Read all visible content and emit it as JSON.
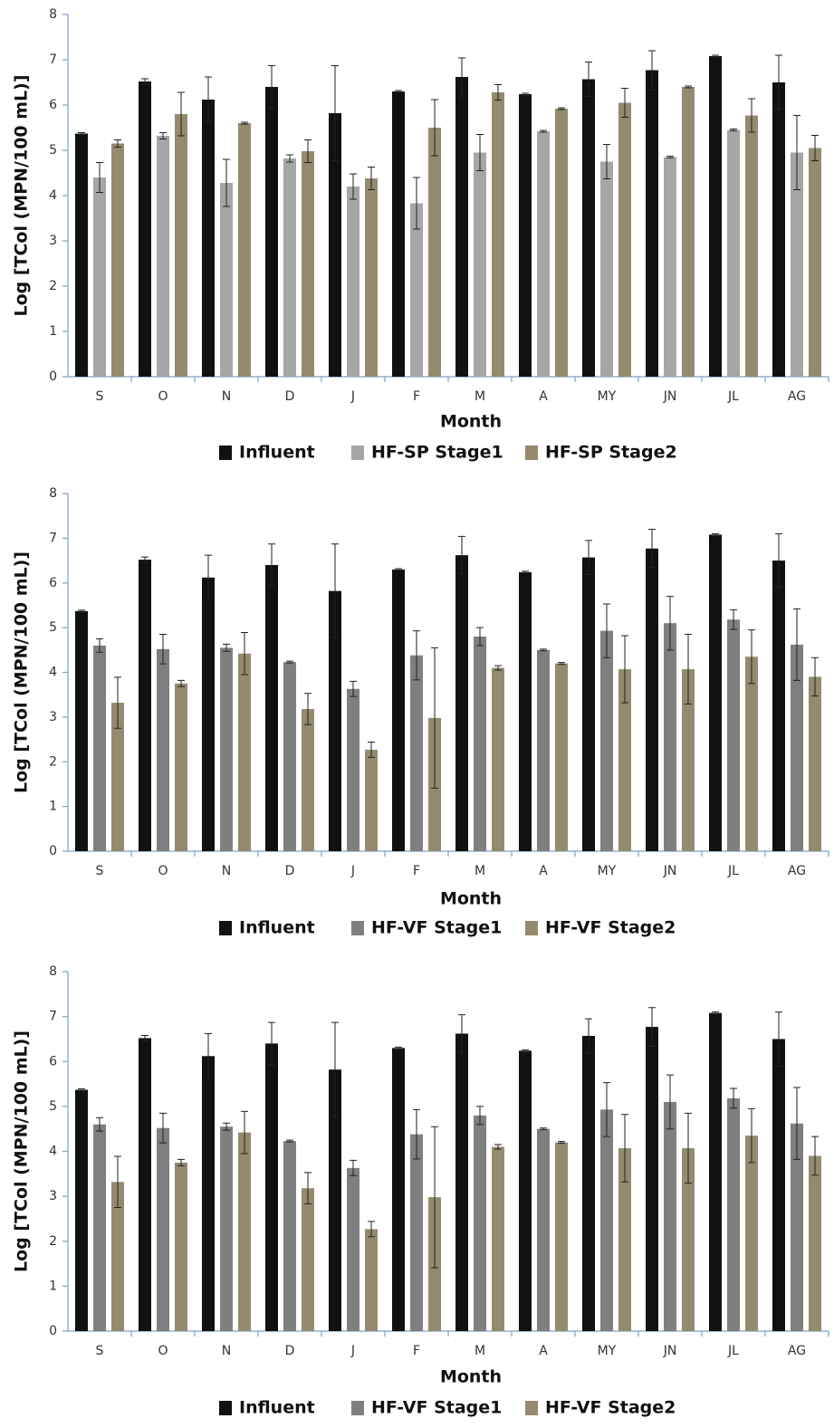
{
  "chart_data": [
    {
      "type": "bar",
      "y_label": "Log [TCol (MPN/100 mL)]",
      "x_label": "Month",
      "categories": [
        "S",
        "O",
        "N",
        "D",
        "J",
        "F",
        "M",
        "A",
        "MY",
        "JN",
        "JL",
        "AG"
      ],
      "ylim": [
        0,
        8
      ],
      "yticks": [
        0,
        1,
        2,
        3,
        4,
        5,
        6,
        7,
        8
      ],
      "grid": false,
      "series": [
        {
          "name": "Influent",
          "color": "#111111",
          "values": [
            5.37,
            6.52,
            6.12,
            6.4,
            5.82,
            6.3,
            6.62,
            6.24,
            6.57,
            6.77,
            7.08,
            6.5
          ],
          "errors": [
            0.02,
            0.06,
            0.5,
            0.47,
            1.05,
            0.02,
            0.42,
            0.02,
            0.38,
            0.43,
            0.02,
            0.6
          ]
        },
        {
          "name": "HF-SP Stage1",
          "color": "#a6a6a6",
          "values": [
            4.4,
            5.32,
            4.28,
            4.82,
            4.2,
            3.83,
            4.95,
            5.42,
            4.75,
            4.85,
            5.45,
            4.95
          ],
          "errors": [
            0.33,
            0.07,
            0.52,
            0.08,
            0.28,
            0.57,
            0.4,
            0.02,
            0.38,
            0.02,
            0.02,
            0.82
          ]
        },
        {
          "name": "HF-SP Stage2",
          "color": "#948a6e",
          "values": [
            5.15,
            5.8,
            5.6,
            4.98,
            4.38,
            5.5,
            6.28,
            5.92,
            6.05,
            6.4,
            5.77,
            5.05
          ],
          "errors": [
            0.08,
            0.48,
            0.02,
            0.25,
            0.25,
            0.62,
            0.17,
            0.02,
            0.32,
            0.02,
            0.37,
            0.28
          ]
        }
      ]
    },
    {
      "type": "bar",
      "y_label": "Log [TCol (MPN/100 mL)]",
      "x_label": "Month",
      "categories": [
        "S",
        "O",
        "N",
        "D",
        "J",
        "F",
        "M",
        "A",
        "MY",
        "JN",
        "JL",
        "AG"
      ],
      "ylim": [
        0,
        8
      ],
      "yticks": [
        0,
        1,
        2,
        3,
        4,
        5,
        6,
        7,
        8
      ],
      "grid": false,
      "series": [
        {
          "name": "Influent",
          "color": "#111111",
          "values": [
            5.37,
            6.52,
            6.12,
            6.4,
            5.82,
            6.3,
            6.62,
            6.24,
            6.57,
            6.77,
            7.08,
            6.5
          ],
          "errors": [
            0.02,
            0.06,
            0.5,
            0.47,
            1.05,
            0.02,
            0.42,
            0.02,
            0.38,
            0.43,
            0.02,
            0.6
          ]
        },
        {
          "name": "HF-VF Stage1",
          "color": "#7f7f7f",
          "values": [
            4.6,
            4.52,
            4.55,
            4.23,
            3.63,
            4.38,
            4.8,
            4.5,
            4.93,
            5.1,
            5.18,
            4.62
          ],
          "errors": [
            0.15,
            0.33,
            0.08,
            0.02,
            0.17,
            0.55,
            0.2,
            0.02,
            0.6,
            0.6,
            0.22,
            0.8
          ]
        },
        {
          "name": "HF-VF Stage2",
          "color": "#948a6e",
          "values": [
            3.32,
            3.75,
            4.42,
            3.18,
            2.27,
            2.98,
            4.1,
            4.2,
            4.07,
            4.07,
            4.35,
            3.9
          ],
          "errors": [
            0.57,
            0.07,
            0.47,
            0.35,
            0.17,
            1.57,
            0.05,
            0.02,
            0.75,
            0.78,
            0.6,
            0.43
          ]
        }
      ]
    },
    {
      "type": "bar",
      "y_label": "Log [TCol (MPN/100 mL)]",
      "x_label": "Month",
      "categories": [
        "S",
        "O",
        "N",
        "D",
        "J",
        "F",
        "M",
        "A",
        "MY",
        "JN",
        "JL",
        "AG"
      ],
      "ylim": [
        0,
        8
      ],
      "yticks": [
        0,
        1,
        2,
        3,
        4,
        5,
        6,
        7,
        8
      ],
      "grid": false,
      "series": [
        {
          "name": "Influent",
          "color": "#111111",
          "values": [
            5.37,
            6.52,
            6.12,
            6.4,
            5.82,
            6.3,
            6.62,
            6.24,
            6.57,
            6.77,
            7.08,
            6.5
          ],
          "errors": [
            0.02,
            0.06,
            0.5,
            0.47,
            1.05,
            0.02,
            0.42,
            0.02,
            0.38,
            0.43,
            0.02,
            0.6
          ]
        },
        {
          "name": "HF-VF Stage1",
          "color": "#7f7f7f",
          "values": [
            4.6,
            4.52,
            4.55,
            4.23,
            3.63,
            4.38,
            4.8,
            4.5,
            4.93,
            5.1,
            5.18,
            4.62
          ],
          "errors": [
            0.15,
            0.33,
            0.08,
            0.02,
            0.17,
            0.55,
            0.2,
            0.02,
            0.6,
            0.6,
            0.22,
            0.8
          ]
        },
        {
          "name": "HF-VF Stage2",
          "color": "#948a6e",
          "values": [
            3.32,
            3.75,
            4.42,
            3.18,
            2.27,
            2.98,
            4.1,
            4.2,
            4.07,
            4.07,
            4.35,
            3.9
          ],
          "errors": [
            0.57,
            0.07,
            0.47,
            0.35,
            0.17,
            1.57,
            0.05,
            0.02,
            0.75,
            0.78,
            0.6,
            0.43
          ]
        }
      ]
    }
  ]
}
